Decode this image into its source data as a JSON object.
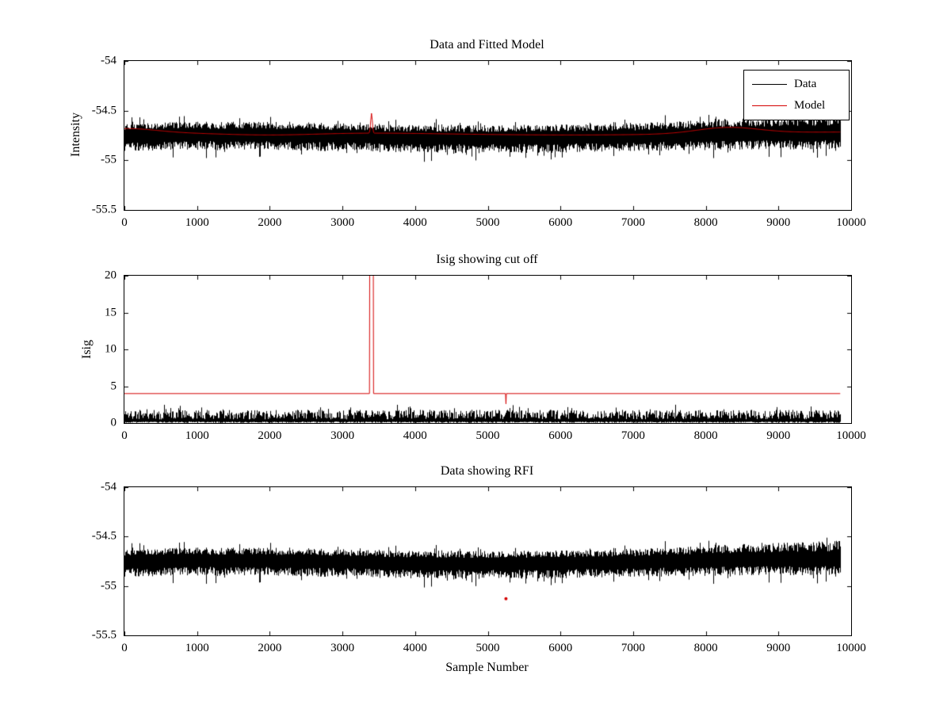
{
  "figure": {
    "background": "#ffffff",
    "axis_color": "#000000"
  },
  "chart_data": [
    {
      "type": "line",
      "title": "Data and Fitted Model",
      "xlabel": "",
      "ylabel": "Intensity",
      "xlim": [
        0,
        10000
      ],
      "ylim": [
        -55.5,
        -54
      ],
      "grid": false,
      "xticks": [
        {
          "v": 0,
          "label": "0"
        },
        {
          "v": 1000,
          "label": "1000"
        },
        {
          "v": 2000,
          "label": "2000"
        },
        {
          "v": 3000,
          "label": "3000"
        },
        {
          "v": 4000,
          "label": "4000"
        },
        {
          "v": 5000,
          "label": "5000"
        },
        {
          "v": 6000,
          "label": "6000"
        },
        {
          "v": 7000,
          "label": "7000"
        },
        {
          "v": 8000,
          "label": "8000"
        },
        {
          "v": 9000,
          "label": "9000"
        },
        {
          "v": 10000,
          "label": "10000"
        }
      ],
      "yticks": [
        {
          "v": -55.5,
          "label": "-55.5"
        },
        {
          "v": -55,
          "label": "-55"
        },
        {
          "v": -54.5,
          "label": "-54.5"
        },
        {
          "v": -54,
          "label": "-54"
        }
      ],
      "legend": {
        "position": "northeast",
        "entries": [
          {
            "label": "Data",
            "color": "#000000"
          },
          {
            "label": "Model",
            "color": "#d40000"
          }
        ]
      },
      "series": [
        {
          "name": "Data",
          "color": "#000000",
          "style": "noise-band",
          "x_end": 9850,
          "center": -54.76,
          "center_drift": 0.045,
          "half_width": 0.13,
          "upper_widen": 0.5,
          "seed": 7,
          "description": "noisy intensity samples, mean ~ -54.76, spread ~ +/-0.2, amplitude grows toward high sample numbers"
        },
        {
          "name": "Model",
          "color": "#d40000",
          "style": "model-line",
          "base": -54.73,
          "x_end": 9850,
          "spike_x": 3400,
          "spike_y": -54.53,
          "description": "smooth fitted model ~ -54.73 with narrow spike at sample ~3400 and gentle rise near 8300"
        }
      ]
    },
    {
      "type": "line",
      "title": "Isig showing cut off",
      "xlabel": "",
      "ylabel": "Isig",
      "xlim": [
        0,
        10000
      ],
      "ylim": [
        0,
        20
      ],
      "grid": false,
      "xticks": [
        {
          "v": 0,
          "label": "0"
        },
        {
          "v": 1000,
          "label": "1000"
        },
        {
          "v": 2000,
          "label": "2000"
        },
        {
          "v": 3000,
          "label": "3000"
        },
        {
          "v": 4000,
          "label": "4000"
        },
        {
          "v": 5000,
          "label": "5000"
        },
        {
          "v": 6000,
          "label": "6000"
        },
        {
          "v": 7000,
          "label": "7000"
        },
        {
          "v": 8000,
          "label": "8000"
        },
        {
          "v": 9000,
          "label": "9000"
        },
        {
          "v": 10000,
          "label": "10000"
        }
      ],
      "yticks": [
        {
          "v": 0,
          "label": "0"
        },
        {
          "v": 5,
          "label": "5"
        },
        {
          "v": 10,
          "label": "10"
        },
        {
          "v": 15,
          "label": "15"
        },
        {
          "v": 20,
          "label": "20"
        }
      ],
      "series": [
        {
          "name": "Isig",
          "color": "#000000",
          "style": "noise-band-positive",
          "x_end": 9850,
          "seed": 11,
          "typical_range": [
            0,
            2.5
          ],
          "description": "Isig noise samples between 0 and ~2.5"
        },
        {
          "name": "Cut off",
          "color": "#d40000",
          "style": "cutoff-line",
          "level": 4,
          "x_end": 9850,
          "spike_x": 3400,
          "dip_x": 5250,
          "dip_y": 2.6,
          "description": "cut-off threshold at Isig = 4 with off-scale spike at sample ~3400 and small dip at ~5250"
        }
      ]
    },
    {
      "type": "line",
      "title": "Data showing RFI",
      "xlabel": "Sample Number",
      "ylabel": "",
      "xlim": [
        0,
        10000
      ],
      "ylim": [
        -55.5,
        -54
      ],
      "grid": false,
      "xticks": [
        {
          "v": 0,
          "label": "0"
        },
        {
          "v": 1000,
          "label": "1000"
        },
        {
          "v": 2000,
          "label": "2000"
        },
        {
          "v": 3000,
          "label": "3000"
        },
        {
          "v": 4000,
          "label": "4000"
        },
        {
          "v": 5000,
          "label": "5000"
        },
        {
          "v": 6000,
          "label": "6000"
        },
        {
          "v": 7000,
          "label": "7000"
        },
        {
          "v": 8000,
          "label": "8000"
        },
        {
          "v": 9000,
          "label": "9000"
        },
        {
          "v": 10000,
          "label": "10000"
        }
      ],
      "yticks": [
        {
          "v": -55.5,
          "label": "-55.5"
        },
        {
          "v": -55,
          "label": "-55"
        },
        {
          "v": -54.5,
          "label": "-54.5"
        },
        {
          "v": -54,
          "label": "-54"
        }
      ],
      "series": [
        {
          "name": "Data",
          "color": "#000000",
          "style": "noise-band",
          "x_end": 9850,
          "center": -54.76,
          "center_drift": 0.045,
          "half_width": 0.13,
          "upper_widen": 0.5,
          "seed": 7,
          "description": "same noisy intensity data as top panel"
        },
        {
          "name": "RFI point",
          "color": "#d40000",
          "style": "marker",
          "x": 5250,
          "y": -55.13,
          "description": "flagged RFI sample marked in red"
        }
      ]
    }
  ]
}
